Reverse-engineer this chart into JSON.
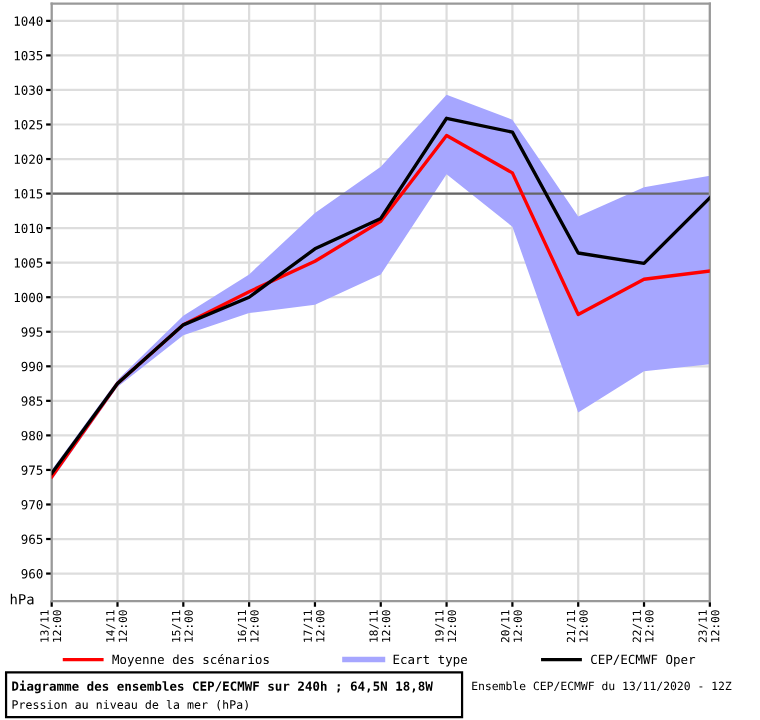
{
  "chart_data": {
    "type": "line",
    "title": "Diagramme des ensembles CEP/ECMWF sur 240h ; 64,5N 18,8W",
    "subtitle": "Pression au niveau de la mer (hPa)",
    "ylabel": "hPa",
    "annotations": [
      "Ecart type",
      "Ensemble CEP/ECMWF du 13/11/2020 - 12Z"
    ],
    "categories": [
      "13/11\n12:00",
      "14/11\n12:00",
      "15/11\n12:00",
      "16/11\n12:00",
      "17/11\n12:00",
      "18/11\n12:00",
      "19/11\n12:00",
      "20/11\n12:00",
      "21/11\n12:00",
      "22/11\n12:00",
      "23/11\n12:00"
    ],
    "series": [
      {
        "name": "Moyenne des scénarios",
        "type": "line",
        "color": "#ff0000",
        "values": [
          974,
          987.5,
          996,
          1000.8,
          1005.2,
          1011,
          1023.4,
          1018,
          997.5,
          1002.6,
          1003.8
        ],
        "lower": [
          973.5,
          987,
          994.5,
          997.7,
          998.9,
          1003.3,
          1017.8,
          1010.2,
          983.3,
          989.3,
          990.3
        ],
        "upper": [
          975,
          988,
          997.3,
          1003.3,
          1012.2,
          1018.9,
          1029.3,
          1025.7,
          1011.7,
          1015.9,
          1017.6
        ]
      },
      {
        "name": "CEP/ECMWF Oper",
        "type": "line",
        "color": "#000000",
        "values": [
          974.5,
          987.5,
          996,
          1000,
          1007,
          1011.4,
          1025.9,
          1023.9,
          1006.4,
          1004.9,
          1014.4
        ]
      }
    ],
    "ylim": [
      956,
      1042.5
    ],
    "yticks": [
      960,
      965,
      970,
      975,
      980,
      985,
      990,
      995,
      1000,
      1005,
      1010,
      1015,
      1020,
      1025,
      1030,
      1035,
      1040
    ],
    "ref_lines": [
      {
        "axis": "y",
        "value": 1015,
        "color": "#666666"
      }
    ],
    "grid": true,
    "legend": "bottom",
    "line_style": "solid"
  }
}
